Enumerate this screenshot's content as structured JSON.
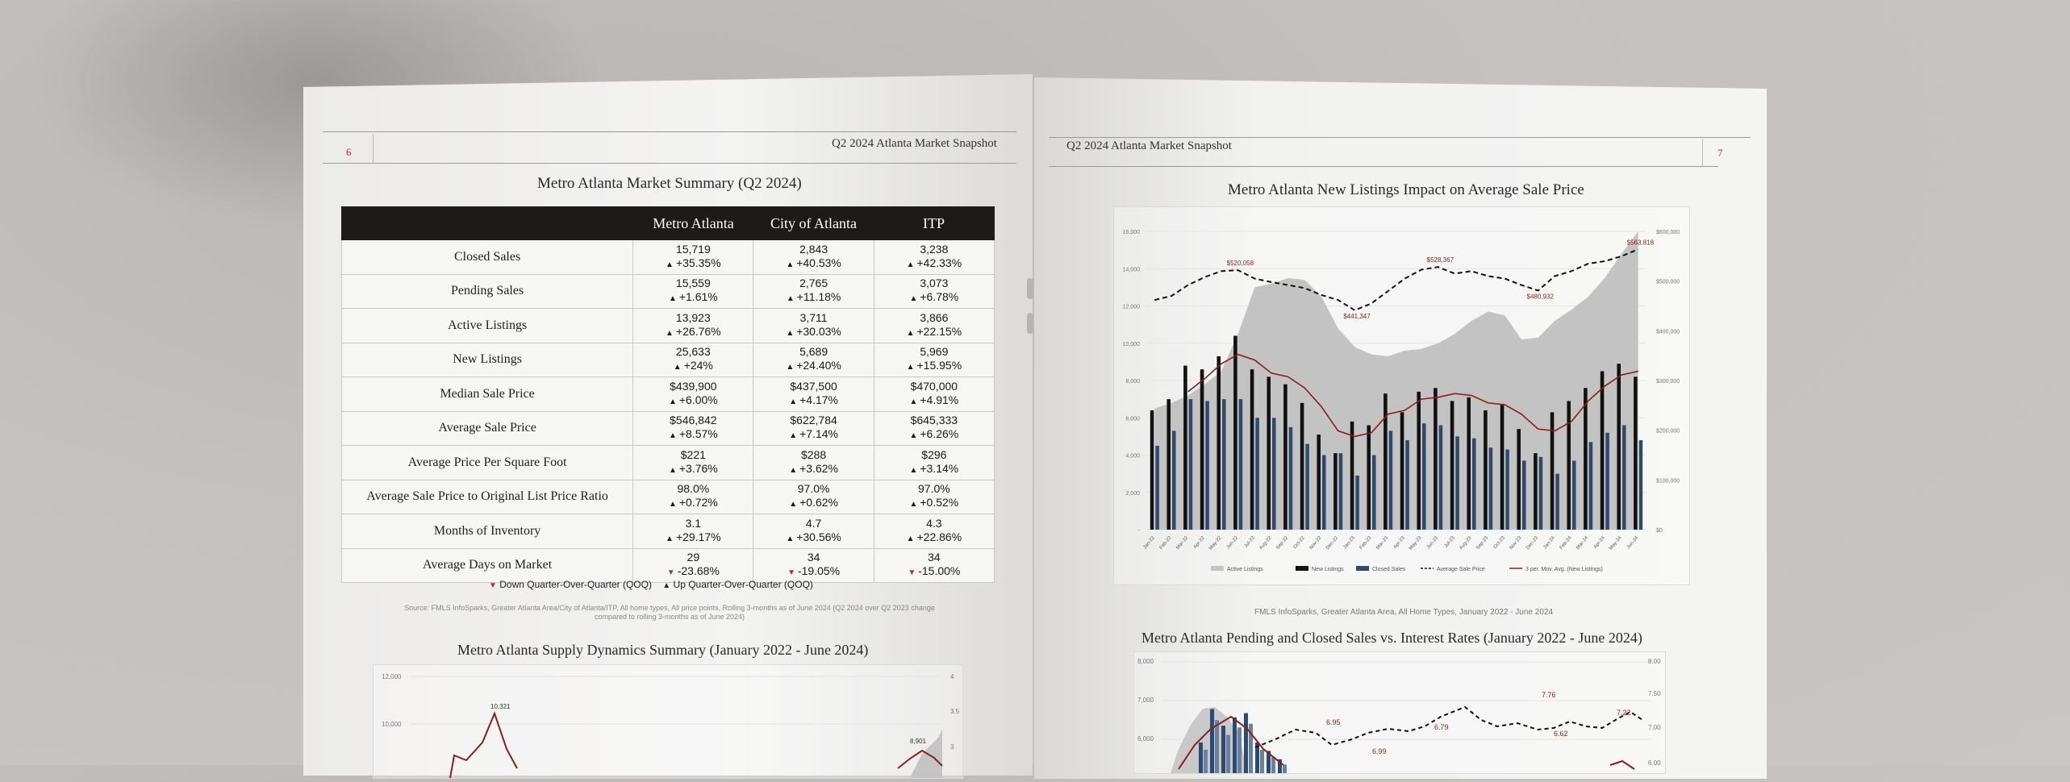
{
  "left_page": {
    "page_number": "6",
    "header": "Q2 2024 Atlanta Market Snapshot",
    "table_title": "Metro Atlanta Market Summary  (Q2 2024)",
    "columns": [
      "Metro Atlanta",
      "City of Atlanta",
      "ITP"
    ],
    "rows": [
      {
        "label": "Closed Sales",
        "cells": [
          [
            "15,719",
            "+35.35%",
            "up"
          ],
          [
            "2,843",
            "+40.53%",
            "up"
          ],
          [
            "3,238",
            "+42.33%",
            "up"
          ]
        ]
      },
      {
        "label": "Pending Sales",
        "cells": [
          [
            "15,559",
            "+1.61%",
            "up"
          ],
          [
            "2,765",
            "+11.18%",
            "up"
          ],
          [
            "3,073",
            "+6.78%",
            "up"
          ]
        ]
      },
      {
        "label": "Active Listings",
        "cells": [
          [
            "13,923",
            "+26.76%",
            "up"
          ],
          [
            "3,711",
            "+30.03%",
            "up"
          ],
          [
            "3,866",
            "+22.15%",
            "up"
          ]
        ]
      },
      {
        "label": "New Listings",
        "cells": [
          [
            "25,633",
            "+24%",
            "up"
          ],
          [
            "5,689",
            "+24.40%",
            "up"
          ],
          [
            "5,969",
            "+15.95%",
            "up"
          ]
        ]
      },
      {
        "label": "Median Sale Price",
        "cells": [
          [
            "$439,900",
            "+6.00%",
            "up"
          ],
          [
            "$437,500",
            "+4.17%",
            "up"
          ],
          [
            "$470,000",
            "+4.91%",
            "up"
          ]
        ]
      },
      {
        "label": "Average Sale Price",
        "cells": [
          [
            "$546,842",
            "+8.57%",
            "up"
          ],
          [
            "$622,784",
            "+7.14%",
            "up"
          ],
          [
            "$645,333",
            "+6.26%",
            "up"
          ]
        ]
      },
      {
        "label": "Average Price Per Square Foot",
        "cells": [
          [
            "$221",
            "+3.76%",
            "up"
          ],
          [
            "$288",
            "+3.62%",
            "up"
          ],
          [
            "$296",
            "+3.14%",
            "up"
          ]
        ]
      },
      {
        "label": "Average Sale Price to Original List Price Ratio",
        "cells": [
          [
            "98.0%",
            "+0.72%",
            "up"
          ],
          [
            "97.0%",
            "+0.62%",
            "up"
          ],
          [
            "97.0%",
            "+0.52%",
            "up"
          ]
        ]
      },
      {
        "label": "Months of Inventory",
        "cells": [
          [
            "3.1",
            "+29.17%",
            "up"
          ],
          [
            "4.7",
            "+30.56%",
            "up"
          ],
          [
            "4.3",
            "+22.86%",
            "up"
          ]
        ]
      },
      {
        "label": "Average Days on Market",
        "cells": [
          [
            "29",
            "-23.68%",
            "down"
          ],
          [
            "34",
            "-19.05%",
            "down"
          ],
          [
            "34",
            "-15.00%",
            "down"
          ]
        ]
      }
    ],
    "legend_down": "Down Quarter-Over-Quarter (QOQ)",
    "legend_up": "Up Quarter-Over-Quarter (QOQ)",
    "source": "Source: FMLS InfoSparks, Greater Atlanta Area/City of Atlanta/ITP, All home types, All price points, Rolling 3-months as of June 2024 (Q2 2024 over Q2 2023 change compared to rolling 3-months as of June 2024)",
    "supply_title": "Metro Atlanta Supply Dynamics Summary (January 2022 - June 2024)"
  },
  "right_page": {
    "page_number": "7",
    "header": "Q2 2024 Atlanta Market Snapshot",
    "chart1_title": "Metro Atlanta New Listings Impact on Average Sale Price",
    "chart1_footnote": "FMLS InfoSparks, Greater Atlanta Area, All Home Types, January 2022 - June 2024",
    "chart2_title": "Metro Atlanta Pending and Closed Sales vs. Interest Rates (January 2022 - June 2024)"
  },
  "chart_data": [
    {
      "type": "bar",
      "title": "Metro Atlanta New Listings Impact on Average Sale Price",
      "categories": [
        "Jan-22",
        "Feb-22",
        "Mar-22",
        "Apr-22",
        "May-22",
        "Jun-22",
        "Jul-22",
        "Aug-22",
        "Sep-22",
        "Oct-22",
        "Nov-22",
        "Dec-22",
        "Jan-23",
        "Feb-23",
        "Mar-23",
        "Apr-23",
        "May-23",
        "Jun-23",
        "Jul-23",
        "Aug-23",
        "Sep-23",
        "Oct-23",
        "Nov-23",
        "Dec-23",
        "Jan-24",
        "Feb-24",
        "Mar-24",
        "Apr-24",
        "May-24",
        "Jun-24"
      ],
      "ylim": [
        0,
        16000
      ],
      "y2lim": [
        0,
        600000
      ],
      "yticks": [
        "-",
        "2,000",
        "4,000",
        "6,000",
        "8,000",
        "10,000",
        "12,000",
        "14,000",
        "16,000"
      ],
      "y2ticks": [
        "$0",
        "$100,000",
        "$200,000",
        "$300,000",
        "$400,000",
        "$500,000",
        "$600,000"
      ],
      "legend": [
        "Active Listings",
        "New Listings",
        "Closed Sales",
        "Average Sale Price",
        "3 per. Mov. Avg. (New Listings)"
      ],
      "colors": {
        "active": "#c3c3c3",
        "new": "#111111",
        "closed": "#2f4a6e",
        "avg_price": "#111111",
        "mov_avg": "#8b1d1a"
      },
      "series": [
        {
          "name": "Active Listings",
          "values": [
            6500,
            6800,
            7200,
            7800,
            8500,
            10500,
            13000,
            13200,
            13500,
            13400,
            12500,
            10800,
            9800,
            9400,
            9300,
            9600,
            9700,
            10000,
            10500,
            11200,
            11700,
            11500,
            10200,
            10300,
            11200,
            11800,
            12500,
            13500,
            14800,
            16000
          ]
        },
        {
          "name": "New Listings",
          "values": [
            6400,
            7000,
            8800,
            8600,
            9300,
            10400,
            8600,
            8200,
            7800,
            6800,
            5100,
            4100,
            5800,
            5600,
            7300,
            6300,
            7400,
            7600,
            6900,
            7100,
            6400,
            6700,
            5400,
            4100,
            6300,
            6900,
            7600,
            8500,
            8900,
            8200
          ]
        },
        {
          "name": "Closed Sales",
          "values": [
            4500,
            5300,
            7000,
            6900,
            7000,
            7000,
            6000,
            6000,
            5500,
            4600,
            4000,
            4100,
            2900,
            4000,
            5300,
            4800,
            5700,
            5600,
            5000,
            4900,
            4400,
            4300,
            3700,
            3900,
            3000,
            3700,
            4700,
            5200,
            5600,
            4800
          ]
        },
        {
          "name": "Average Sale Price",
          "values": [
            462000,
            470000,
            492000,
            508000,
            520000,
            522000,
            505000,
            498000,
            492000,
            486000,
            472000,
            462000,
            441347,
            455000,
            480000,
            505000,
            523000,
            528367,
            515000,
            520000,
            510000,
            505000,
            492000,
            480932,
            510000,
            520000,
            535000,
            540000,
            550000,
            563818
          ]
        },
        {
          "name": "3 per. Mov. Avg. (New Listings)",
          "values": [
            null,
            null,
            7400,
            8100,
            8900,
            9400,
            9100,
            8400,
            8200,
            7600,
            6600,
            5300,
            5000,
            5200,
            6200,
            6400,
            7000,
            7100,
            7300,
            7200,
            6800,
            6700,
            6200,
            5400,
            5300,
            5800,
            6900,
            7700,
            8300,
            8500
          ]
        }
      ],
      "annotations": [
        "$520,058",
        "$441,347",
        "$528,367",
        "$480,932",
        "$563,818"
      ]
    },
    {
      "type": "line",
      "title": "Metro Atlanta Supply Dynamics Summary (January 2022 - June 2024)",
      "yticks": [
        "12,000",
        "10,000"
      ],
      "y2ticks": [
        "4",
        "3.5",
        "3"
      ],
      "annotations": [
        "10,321",
        "8,901"
      ]
    },
    {
      "type": "bar",
      "title": "Metro Atlanta Pending and Closed Sales vs. Interest Rates (January 2022 - June 2024)",
      "yticks": [
        "8,000",
        "7,000",
        "6,000"
      ],
      "y2ticks": [
        "8.00",
        "7.50",
        "7.00",
        "6.00"
      ],
      "annotations": [
        "6.95",
        "6.99",
        "6.79",
        "7.76",
        "6.62",
        "7.22"
      ]
    }
  ]
}
